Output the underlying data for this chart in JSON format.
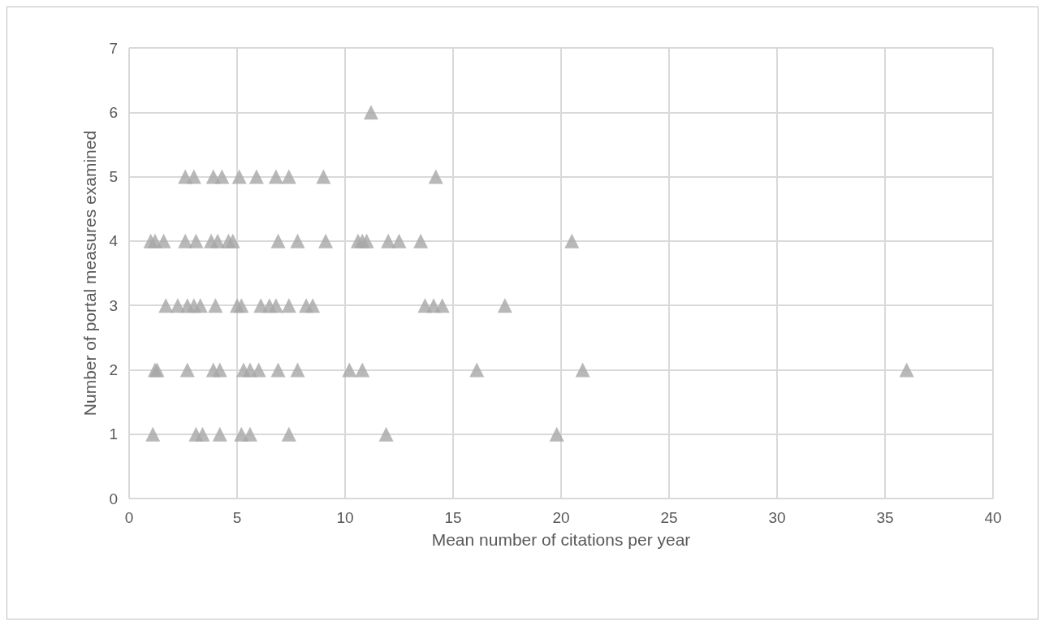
{
  "chart_data": {
    "type": "scatter",
    "xlabel": "Mean number of citations per year",
    "ylabel": "Number of portal measures examined",
    "xlim": [
      0,
      40
    ],
    "xticks": [
      0,
      5,
      10,
      15,
      20,
      25,
      30,
      35,
      40
    ],
    "ylim": [
      0,
      7
    ],
    "yticks": [
      0,
      1,
      2,
      3,
      4,
      5,
      6,
      7
    ],
    "grid": true,
    "marker": "triangle",
    "series": [
      {
        "color": "#a6a6a6",
        "x": [
          11.2,
          2.6,
          3.0,
          3.9,
          4.3,
          5.1,
          5.9,
          6.8,
          7.4,
          9.0,
          14.2,
          1.0,
          1.2,
          1.6,
          2.6,
          3.1,
          3.8,
          4.1,
          4.6,
          4.8,
          6.9,
          7.8,
          9.1,
          10.6,
          10.8,
          11.0,
          12.0,
          12.5,
          13.5,
          20.5,
          1.7,
          2.25,
          2.7,
          3.0,
          3.3,
          4.0,
          5.0,
          5.2,
          6.1,
          6.5,
          6.8,
          7.4,
          8.2,
          8.5,
          13.7,
          14.1,
          14.5,
          17.4,
          1.2,
          1.3,
          2.7,
          3.9,
          4.2,
          5.3,
          5.6,
          6.0,
          6.9,
          7.8,
          10.2,
          10.8,
          16.1,
          21.0,
          36.0,
          1.1,
          3.1,
          3.4,
          4.2,
          5.2,
          5.6,
          7.4,
          11.9,
          19.8
        ],
        "values": [
          6,
          5,
          5,
          5,
          5,
          5,
          5,
          5,
          5,
          5,
          5,
          4,
          4,
          4,
          4,
          4,
          4,
          4,
          4,
          4,
          4,
          4,
          4,
          4,
          4,
          4,
          4,
          4,
          4,
          4,
          3,
          3,
          3,
          3,
          3,
          3,
          3,
          3,
          3,
          3,
          3,
          3,
          3,
          3,
          3,
          3,
          3,
          3,
          2,
          2,
          2,
          2,
          2,
          2,
          2,
          2,
          2,
          2,
          2,
          2,
          2,
          2,
          2,
          1,
          1,
          1,
          1,
          1,
          1,
          1,
          1,
          1
        ]
      }
    ]
  }
}
